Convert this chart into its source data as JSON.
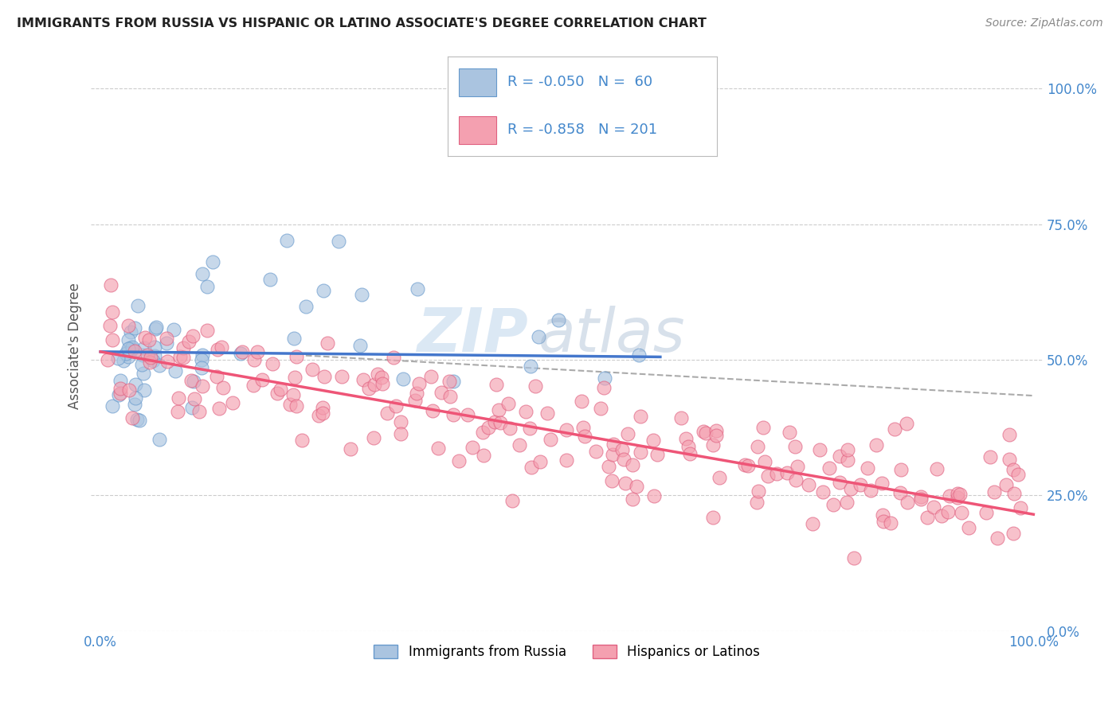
{
  "title": "IMMIGRANTS FROM RUSSIA VS HISPANIC OR LATINO ASSOCIATE'S DEGREE CORRELATION CHART",
  "source": "Source: ZipAtlas.com",
  "ylabel": "Associate's Degree",
  "y_ticks": [
    "0.0%",
    "25.0%",
    "50.0%",
    "75.0%",
    "100.0%"
  ],
  "y_tick_vals": [
    0.0,
    0.25,
    0.5,
    0.75,
    1.0
  ],
  "x_tick_labels": [
    "0.0%",
    "100.0%"
  ],
  "x_tick_vals": [
    0.0,
    1.0
  ],
  "x_lim": [
    -0.01,
    1.01
  ],
  "y_lim": [
    0.0,
    1.05
  ],
  "blue_scatter_color": "#aac4e0",
  "pink_scatter_color": "#f4a0b0",
  "blue_edge_color": "#6699cc",
  "pink_edge_color": "#e06080",
  "blue_line_color": "#4477cc",
  "pink_line_color": "#ee5577",
  "dashed_line_color": "#aaaaaa",
  "watermark_zip": "ZIP",
  "watermark_atlas": "atlas",
  "background_color": "#ffffff",
  "grid_color": "#cccccc",
  "title_color": "#222222",
  "axis_tick_color": "#4488cc",
  "blue_R": -0.05,
  "blue_N": 60,
  "pink_R": -0.858,
  "pink_N": 201,
  "blue_line_x0": 0.0,
  "blue_line_y0": 0.515,
  "blue_line_x1": 0.55,
  "blue_line_y1": 0.505,
  "pink_line_x0": 0.0,
  "pink_line_y0": 0.515,
  "pink_line_x1": 1.0,
  "pink_line_y1": 0.215,
  "dash_line_x0": 0.25,
  "dash_line_y0": 0.505,
  "dash_line_x1": 1.0,
  "dash_line_y1": 0.415,
  "legend_R1_text": "R = -0.050",
  "legend_N1_text": "N =  60",
  "legend_R2_text": "R = -0.858",
  "legend_N2_text": "N = 201"
}
